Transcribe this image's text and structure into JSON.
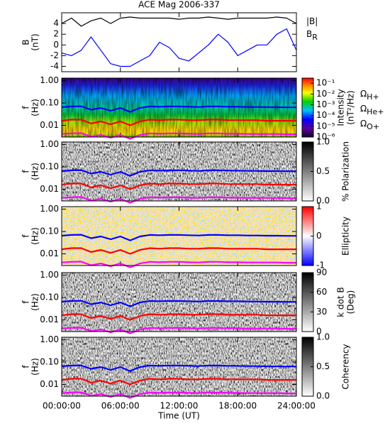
{
  "chart_data": [
    {
      "type": "line",
      "title": "ACE Mag 2006-337",
      "ylabel": [
        "B",
        "(nT)"
      ],
      "x": [
        0,
        1,
        2,
        3,
        4,
        5,
        6,
        7,
        8,
        9,
        10,
        11,
        12,
        13,
        14,
        15,
        16,
        17,
        18,
        19,
        20,
        21,
        22,
        23,
        24
      ],
      "xlim": [
        0,
        24
      ],
      "xticks": [
        0,
        6,
        12,
        18,
        24
      ],
      "ylim": [
        -5,
        6
      ],
      "yticks": [
        -4,
        -2,
        0,
        2,
        4
      ],
      "series": [
        {
          "name": "|B|",
          "color": "#000000",
          "values": [
            4,
            5,
            3.5,
            4.5,
            5,
            4,
            5,
            5.2,
            5,
            5,
            5,
            5,
            4.8,
            5,
            5,
            5.2,
            5,
            4.8,
            5,
            5,
            5,
            5,
            5.2,
            5,
            4
          ]
        },
        {
          "name": "B",
          "subscript": "R",
          "color": "#0000ff",
          "values": [
            -1.5,
            -2,
            -1,
            1.5,
            -1,
            -3.5,
            -4,
            -4,
            -3,
            -2,
            0.5,
            -0.5,
            -2.5,
            -3,
            -1.5,
            0,
            2,
            0.5,
            -2,
            -1,
            0,
            0,
            2,
            3,
            -1
          ]
        }
      ]
    },
    {
      "type": "spectrogram",
      "ylabel": [
        "f",
        "(Hz)"
      ],
      "ylog": true,
      "ylim": [
        0.003,
        1.3
      ],
      "yticks": [
        {
          "value": 1,
          "label": "1.00"
        },
        {
          "value": 0.1,
          "label": "0.10"
        },
        {
          "value": 0.01,
          "label": "0.01"
        }
      ],
      "x": [
        0,
        1,
        2,
        3,
        4,
        5,
        6,
        7,
        8,
        9,
        10,
        11,
        12,
        13,
        14,
        15,
        16,
        17,
        18,
        19,
        20,
        21,
        22,
        23,
        24
      ],
      "xlim": [
        0,
        24
      ],
      "xticks": [
        0,
        6,
        12,
        18,
        24
      ],
      "colormap": "rainbow",
      "clog": true,
      "clim": [
        1e-06,
        0.3
      ],
      "clabel": [
        "Intensity",
        "(nT²/Hz)"
      ],
      "cticks": [
        {
          "value": 0.1,
          "label": "10⁻¹"
        },
        {
          "value": 0.01,
          "label": "10⁻²"
        },
        {
          "value": 0.001,
          "label": "10⁻³"
        },
        {
          "value": 0.0001,
          "label": "10⁻⁴"
        },
        {
          "value": 1e-05,
          "label": "10⁻⁵"
        },
        {
          "value": 1e-06,
          "label": "10⁻⁶"
        }
      ],
      "series": [
        {
          "name": "Ω",
          "subscript": "H+",
          "color": "#0000ff",
          "values": [
            0.065,
            0.07,
            0.072,
            0.05,
            0.06,
            0.045,
            0.06,
            0.04,
            0.06,
            0.07,
            0.068,
            0.07,
            0.07,
            0.068,
            0.066,
            0.07,
            0.07,
            0.068,
            0.068,
            0.066,
            0.066,
            0.065,
            0.065,
            0.064,
            0.064
          ]
        },
        {
          "name": "Ω",
          "subscript": "He+",
          "color": "#ff0000",
          "values": [
            0.016,
            0.018,
            0.018,
            0.012,
            0.015,
            0.011,
            0.015,
            0.01,
            0.015,
            0.018,
            0.017,
            0.018,
            0.018,
            0.017,
            0.017,
            0.018,
            0.018,
            0.017,
            0.017,
            0.017,
            0.017,
            0.016,
            0.016,
            0.016,
            0.016
          ]
        },
        {
          "name": "Ω",
          "subscript": "O+",
          "color": "#ff00ff",
          "values": [
            0.0041,
            0.0044,
            0.0045,
            0.0031,
            0.0037,
            0.0028,
            0.0037,
            0.0025,
            0.0037,
            0.0044,
            0.0042,
            0.0044,
            0.0044,
            0.0042,
            0.0041,
            0.0044,
            0.0044,
            0.0042,
            0.0042,
            0.0041,
            0.0041,
            0.0041,
            0.0041,
            0.004,
            0.004
          ]
        }
      ]
    },
    {
      "type": "spectrogram",
      "ylabel": [
        "f",
        "(Hz)"
      ],
      "ylog": true,
      "ylim": [
        0.003,
        1.3
      ],
      "yticks": [
        {
          "value": 1,
          "label": "1.00"
        },
        {
          "value": 0.1,
          "label": "0.10"
        },
        {
          "value": 0.01,
          "label": "0.01"
        }
      ],
      "x": [
        0,
        1,
        2,
        3,
        4,
        5,
        6,
        7,
        8,
        9,
        10,
        11,
        12,
        13,
        14,
        15,
        16,
        17,
        18,
        19,
        20,
        21,
        22,
        23,
        24
      ],
      "xlim": [
        0,
        24
      ],
      "xticks": [
        0,
        6,
        12,
        18,
        24
      ],
      "colormap": "gray",
      "clim": [
        0,
        1
      ],
      "clabel": [
        "% Polarization"
      ],
      "cticks": [
        {
          "value": 0,
          "label": "0.0"
        },
        {
          "value": 0.5,
          "label": "0.5"
        },
        {
          "value": 1,
          "label": "1.0"
        }
      ],
      "series": [
        {
          "color": "#0000ff",
          "values": [
            0.065,
            0.07,
            0.072,
            0.05,
            0.06,
            0.045,
            0.06,
            0.04,
            0.06,
            0.07,
            0.068,
            0.07,
            0.07,
            0.068,
            0.066,
            0.07,
            0.07,
            0.068,
            0.068,
            0.066,
            0.066,
            0.065,
            0.065,
            0.064,
            0.064
          ]
        },
        {
          "color": "#ff0000",
          "values": [
            0.016,
            0.018,
            0.018,
            0.012,
            0.015,
            0.011,
            0.015,
            0.01,
            0.015,
            0.018,
            0.017,
            0.018,
            0.018,
            0.017,
            0.017,
            0.018,
            0.018,
            0.017,
            0.017,
            0.017,
            0.017,
            0.016,
            0.016,
            0.016,
            0.016
          ]
        },
        {
          "color": "#ff00ff",
          "values": [
            0.0041,
            0.0044,
            0.0045,
            0.0031,
            0.0037,
            0.0028,
            0.0037,
            0.0025,
            0.0037,
            0.0044,
            0.0042,
            0.0044,
            0.0044,
            0.0042,
            0.0041,
            0.0044,
            0.0044,
            0.0042,
            0.0042,
            0.0041,
            0.0041,
            0.0041,
            0.0041,
            0.004,
            0.004
          ]
        }
      ]
    },
    {
      "type": "spectrogram",
      "ylabel": [
        "f",
        "(Hz)"
      ],
      "ylog": true,
      "ylim": [
        0.003,
        1.3
      ],
      "yticks": [
        {
          "value": 1,
          "label": "1.00"
        },
        {
          "value": 0.1,
          "label": "0.10"
        },
        {
          "value": 0.01,
          "label": "0.01"
        }
      ],
      "x": [
        0,
        1,
        2,
        3,
        4,
        5,
        6,
        7,
        8,
        9,
        10,
        11,
        12,
        13,
        14,
        15,
        16,
        17,
        18,
        19,
        20,
        21,
        22,
        23,
        24
      ],
      "xlim": [
        0,
        24
      ],
      "xticks": [
        0,
        6,
        12,
        18,
        24
      ],
      "colormap": "bwr",
      "clim": [
        -1,
        1
      ],
      "clabel": [
        "Ellipticity"
      ],
      "cticks": [
        -1,
        0,
        1
      ],
      "series": [
        {
          "color": "#0000ff",
          "values": [
            0.065,
            0.07,
            0.072,
            0.05,
            0.06,
            0.045,
            0.06,
            0.04,
            0.06,
            0.07,
            0.068,
            0.07,
            0.07,
            0.068,
            0.066,
            0.07,
            0.07,
            0.068,
            0.068,
            0.066,
            0.066,
            0.065,
            0.065,
            0.064,
            0.064
          ]
        },
        {
          "color": "#ff0000",
          "values": [
            0.016,
            0.018,
            0.018,
            0.012,
            0.015,
            0.011,
            0.015,
            0.01,
            0.015,
            0.018,
            0.017,
            0.018,
            0.018,
            0.017,
            0.017,
            0.018,
            0.018,
            0.017,
            0.017,
            0.017,
            0.017,
            0.016,
            0.016,
            0.016,
            0.016
          ]
        },
        {
          "color": "#ff00ff",
          "values": [
            0.0041,
            0.0044,
            0.0045,
            0.0031,
            0.0037,
            0.0028,
            0.0037,
            0.0025,
            0.0037,
            0.0044,
            0.0042,
            0.0044,
            0.0044,
            0.0042,
            0.0041,
            0.0044,
            0.0044,
            0.0042,
            0.0042,
            0.0041,
            0.0041,
            0.0041,
            0.0041,
            0.004,
            0.004
          ]
        }
      ]
    },
    {
      "type": "spectrogram",
      "ylabel": [
        "f",
        "(Hz)"
      ],
      "ylog": true,
      "ylim": [
        0.003,
        1.3
      ],
      "yticks": [
        {
          "value": 1,
          "label": "1.00"
        },
        {
          "value": 0.1,
          "label": "0.10"
        },
        {
          "value": 0.01,
          "label": "0.01"
        }
      ],
      "x": [
        0,
        1,
        2,
        3,
        4,
        5,
        6,
        7,
        8,
        9,
        10,
        11,
        12,
        13,
        14,
        15,
        16,
        17,
        18,
        19,
        20,
        21,
        22,
        23,
        24
      ],
      "xlim": [
        0,
        24
      ],
      "xticks": [
        0,
        6,
        12,
        18,
        24
      ],
      "colormap": "gray",
      "clim": [
        0,
        90
      ],
      "clabel": [
        "k dot B",
        "(Deg)"
      ],
      "cticks": [
        0,
        30,
        60,
        90
      ],
      "series": [
        {
          "color": "#0000ff",
          "values": [
            0.065,
            0.07,
            0.072,
            0.05,
            0.06,
            0.045,
            0.06,
            0.04,
            0.06,
            0.07,
            0.068,
            0.07,
            0.07,
            0.068,
            0.066,
            0.07,
            0.07,
            0.068,
            0.068,
            0.066,
            0.066,
            0.065,
            0.065,
            0.064,
            0.064
          ]
        },
        {
          "color": "#ff0000",
          "values": [
            0.016,
            0.018,
            0.018,
            0.012,
            0.015,
            0.011,
            0.015,
            0.01,
            0.015,
            0.018,
            0.017,
            0.018,
            0.018,
            0.017,
            0.017,
            0.018,
            0.018,
            0.017,
            0.017,
            0.017,
            0.017,
            0.016,
            0.016,
            0.016,
            0.016
          ]
        },
        {
          "color": "#ff00ff",
          "values": [
            0.0041,
            0.0044,
            0.0045,
            0.0031,
            0.0037,
            0.0028,
            0.0037,
            0.0025,
            0.0037,
            0.0044,
            0.0042,
            0.0044,
            0.0044,
            0.0042,
            0.0041,
            0.0044,
            0.0044,
            0.0042,
            0.0042,
            0.0041,
            0.0041,
            0.0041,
            0.0041,
            0.004,
            0.004
          ]
        }
      ]
    },
    {
      "type": "spectrogram",
      "ylabel": [
        "f",
        "(Hz)"
      ],
      "ylog": true,
      "ylim": [
        0.003,
        1.3
      ],
      "yticks": [
        {
          "value": 1,
          "label": "1.00"
        },
        {
          "value": 0.1,
          "label": "0.10"
        },
        {
          "value": 0.01,
          "label": "0.01"
        }
      ],
      "x": [
        0,
        1,
        2,
        3,
        4,
        5,
        6,
        7,
        8,
        9,
        10,
        11,
        12,
        13,
        14,
        15,
        16,
        17,
        18,
        19,
        20,
        21,
        22,
        23,
        24
      ],
      "xlim": [
        0,
        24
      ],
      "xticks": [
        {
          "value": 0,
          "label": "00:00:00"
        },
        {
          "value": 6,
          "label": "06:00:00"
        },
        {
          "value": 12,
          "label": "12:00:00"
        },
        {
          "value": 18,
          "label": "18:00:00"
        },
        {
          "value": 24,
          "label": "24:00:00"
        }
      ],
      "xlabel": "Time (UT)",
      "colormap": "gray",
      "clim": [
        0,
        1
      ],
      "clabel": [
        "Coherency"
      ],
      "cticks": [
        {
          "value": 0,
          "label": "0.0"
        },
        {
          "value": 0.5,
          "label": "0.5"
        },
        {
          "value": 1,
          "label": "1.0"
        }
      ],
      "series": [
        {
          "color": "#0000ff",
          "values": [
            0.065,
            0.07,
            0.072,
            0.05,
            0.06,
            0.045,
            0.06,
            0.04,
            0.06,
            0.07,
            0.068,
            0.07,
            0.07,
            0.068,
            0.066,
            0.07,
            0.07,
            0.068,
            0.068,
            0.066,
            0.066,
            0.065,
            0.065,
            0.064,
            0.064
          ]
        },
        {
          "color": "#ff0000",
          "values": [
            0.016,
            0.018,
            0.018,
            0.012,
            0.015,
            0.011,
            0.015,
            0.01,
            0.015,
            0.018,
            0.017,
            0.018,
            0.018,
            0.017,
            0.017,
            0.018,
            0.018,
            0.017,
            0.017,
            0.017,
            0.017,
            0.016,
            0.016,
            0.016,
            0.016
          ]
        },
        {
          "color": "#ff00ff",
          "values": [
            0.0041,
            0.0044,
            0.0045,
            0.0031,
            0.0037,
            0.0028,
            0.0037,
            0.0025,
            0.0037,
            0.0044,
            0.0042,
            0.0044,
            0.0044,
            0.0042,
            0.0041,
            0.0044,
            0.0044,
            0.0042,
            0.0042,
            0.0041,
            0.0041,
            0.0041,
            0.0041,
            0.004,
            0.004
          ]
        }
      ]
    }
  ]
}
